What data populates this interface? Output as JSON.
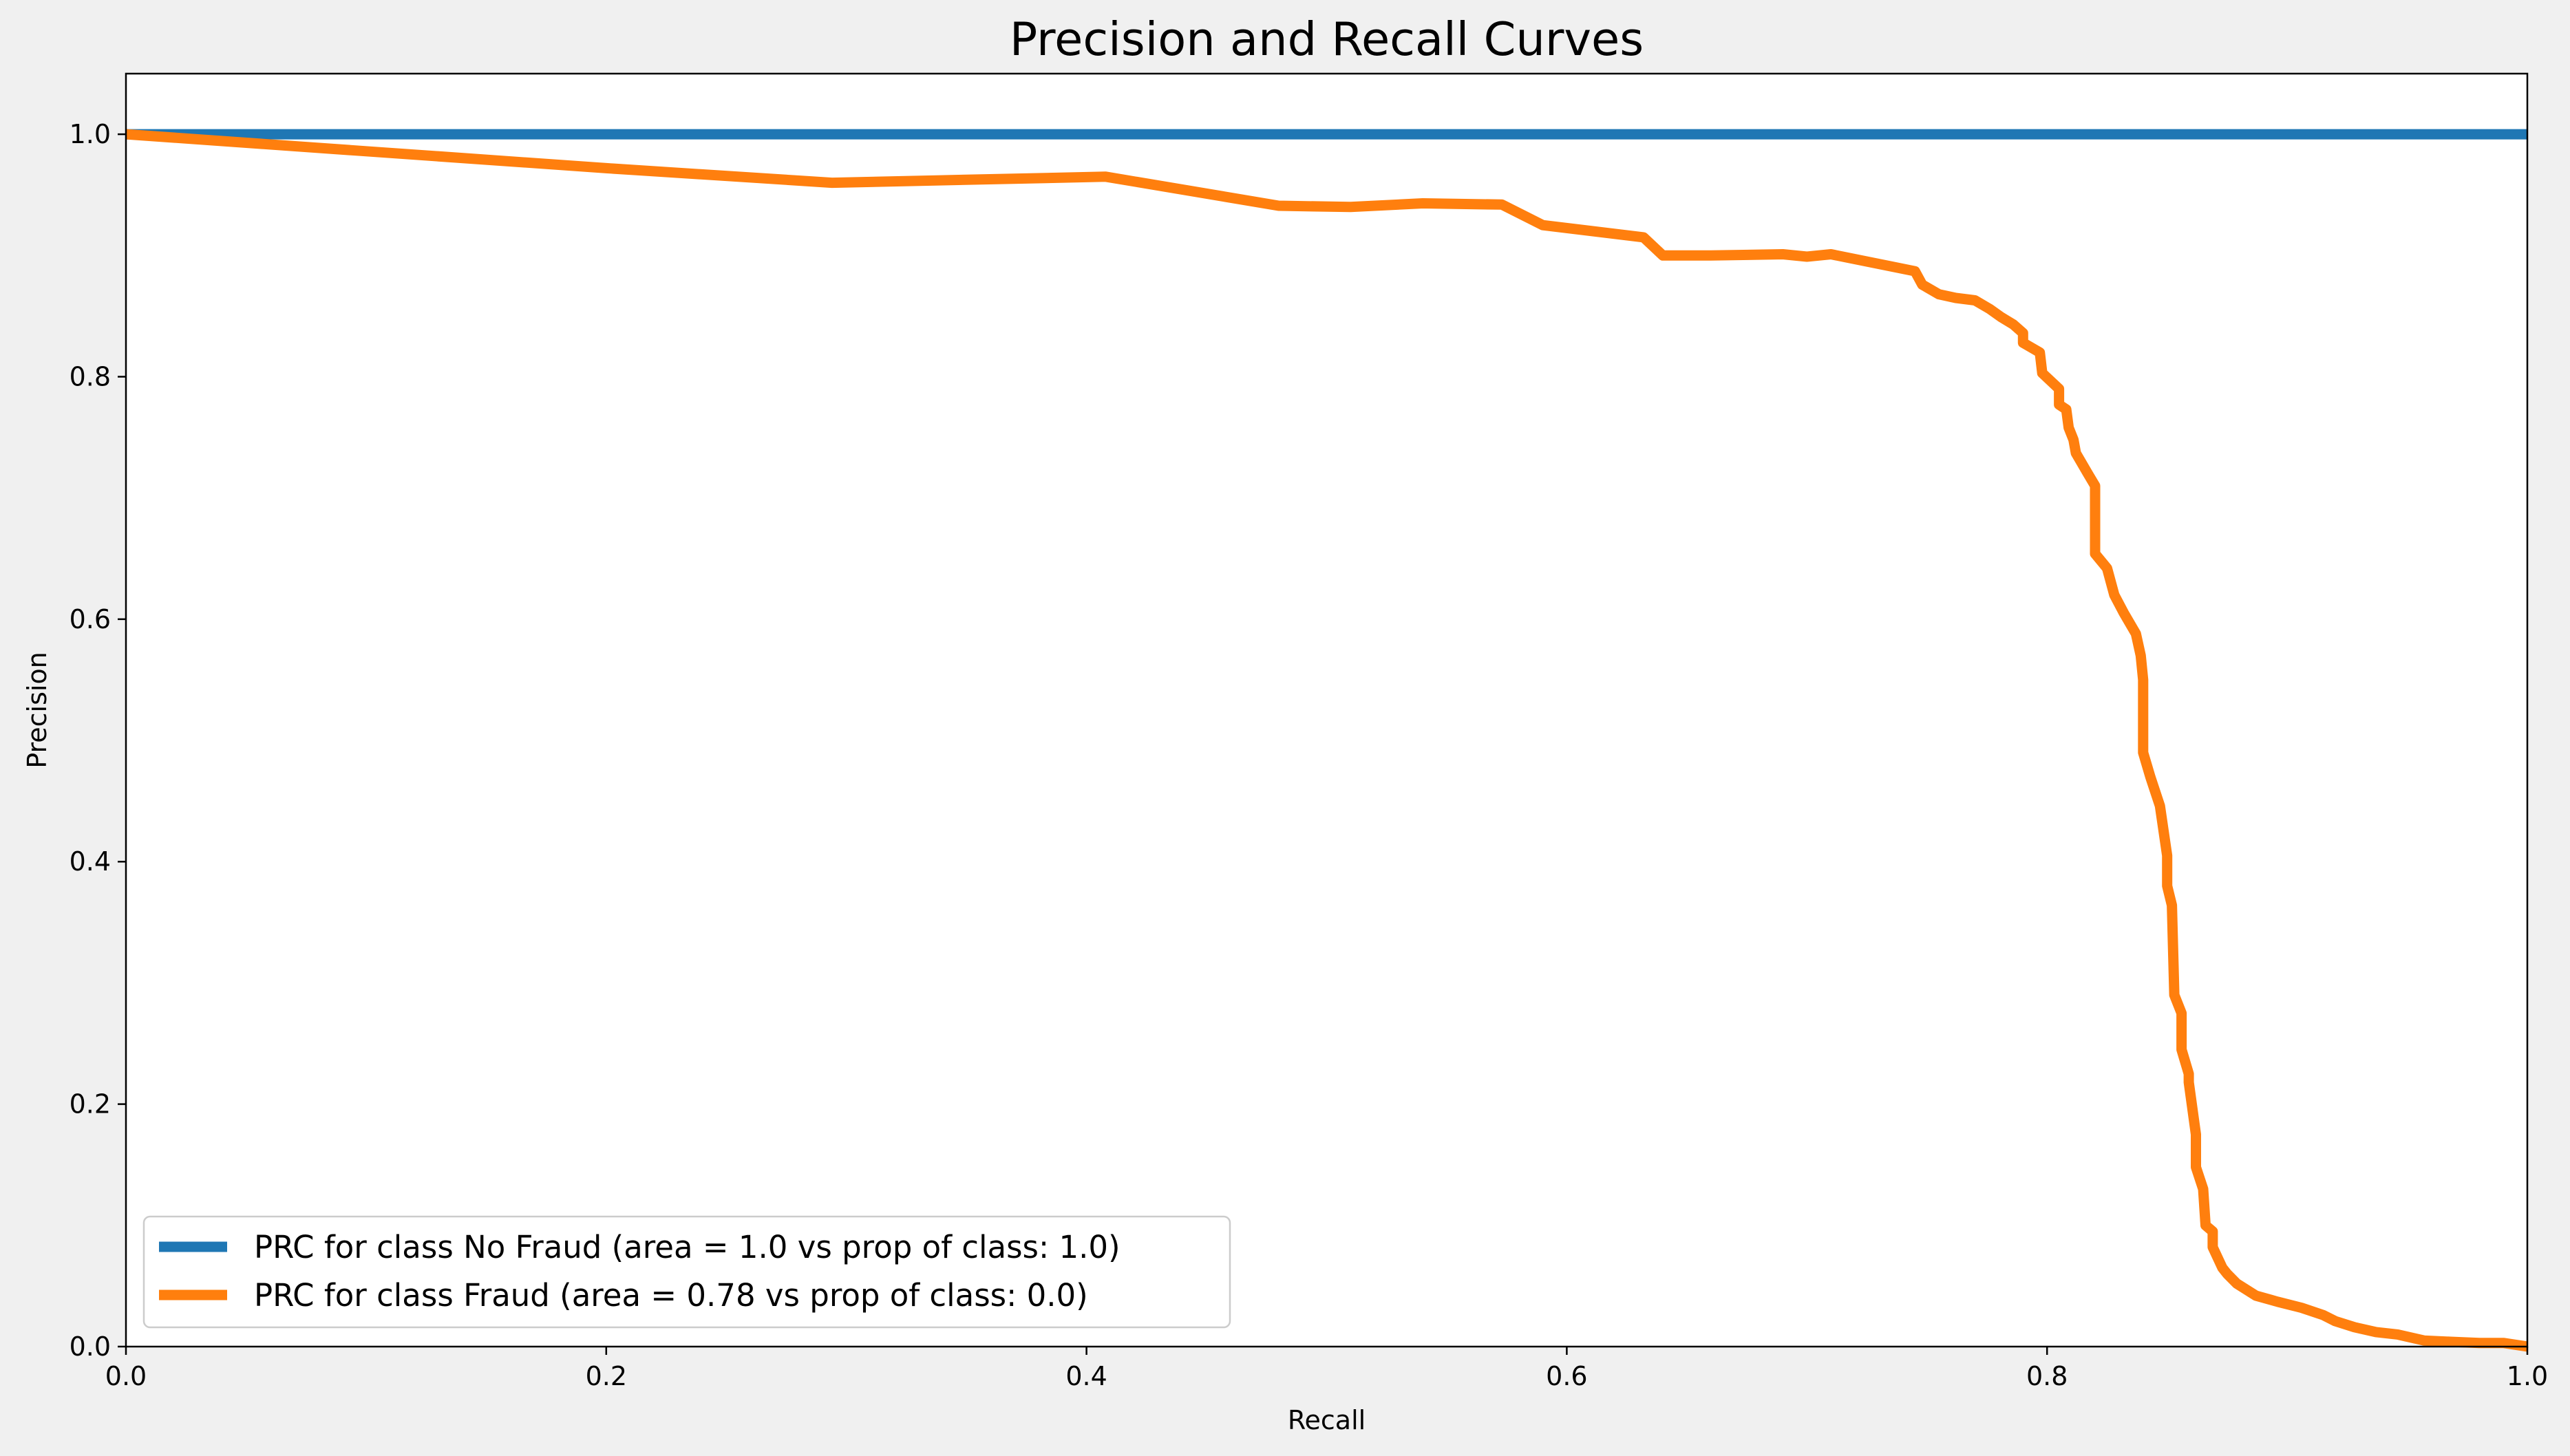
{
  "chart_data": {
    "type": "line",
    "title": "Precision and Recall Curves",
    "xlabel": "Recall",
    "ylabel": "Precision",
    "xlim": [
      0.0,
      1.0
    ],
    "ylim": [
      0.0,
      1.05
    ],
    "xticks": [
      0.0,
      0.2,
      0.4,
      0.6,
      0.8,
      1.0
    ],
    "xtick_labels": [
      "0.0",
      "0.2",
      "0.4",
      "0.6",
      "0.8",
      "1.0"
    ],
    "yticks": [
      0.0,
      0.2,
      0.4,
      0.6,
      0.8,
      1.0
    ],
    "ytick_labels": [
      "0.0",
      "0.2",
      "0.4",
      "0.6",
      "0.8",
      "1.0"
    ],
    "grid": false,
    "legend_position": "lower-left",
    "series": [
      {
        "name": "PRC for class No Fraud (area = 1.0 vs prop of class: 1.0)",
        "color": "#1f77b4",
        "x": [
          0.0,
          1.0
        ],
        "y": [
          1.0,
          1.0
        ]
      },
      {
        "name": "PRC for class Fraud (area = 0.78 vs prop of class: 0.0)",
        "color": "#ff7f0e",
        "x": [
          0.0,
          0.1,
          0.2,
          0.294,
          0.408,
          0.48,
          0.51,
          0.54,
          0.573,
          0.59,
          0.632,
          0.64,
          0.66,
          0.69,
          0.7,
          0.71,
          0.745,
          0.748,
          0.755,
          0.762,
          0.77,
          0.776,
          0.781,
          0.786,
          0.79,
          0.79,
          0.797,
          0.798,
          0.805,
          0.805,
          0.808,
          0.809,
          0.811,
          0.812,
          0.817,
          0.82,
          0.82,
          0.825,
          0.828,
          0.832,
          0.837,
          0.839,
          0.84,
          0.84,
          0.843,
          0.847,
          0.85,
          0.85,
          0.852,
          0.853,
          0.856,
          0.856,
          0.859,
          0.859,
          0.862,
          0.862,
          0.865,
          0.866,
          0.869,
          0.869,
          0.873,
          0.875,
          0.879,
          0.887,
          0.896,
          0.906,
          0.915,
          0.92,
          0.928,
          0.937,
          0.946,
          0.957,
          0.968,
          0.98,
          0.99,
          1.0
        ],
        "y": [
          1.0,
          0.986,
          0.972,
          0.96,
          0.965,
          0.941,
          0.94,
          0.943,
          0.942,
          0.925,
          0.915,
          0.9,
          0.9,
          0.901,
          0.899,
          0.901,
          0.887,
          0.876,
          0.868,
          0.865,
          0.863,
          0.856,
          0.849,
          0.843,
          0.836,
          0.828,
          0.82,
          0.803,
          0.79,
          0.777,
          0.773,
          0.758,
          0.748,
          0.737,
          0.72,
          0.71,
          0.654,
          0.642,
          0.62,
          0.605,
          0.588,
          0.57,
          0.55,
          0.49,
          0.47,
          0.446,
          0.405,
          0.38,
          0.364,
          0.29,
          0.275,
          0.245,
          0.225,
          0.218,
          0.175,
          0.148,
          0.13,
          0.1,
          0.095,
          0.082,
          0.065,
          0.06,
          0.052,
          0.042,
          0.037,
          0.032,
          0.026,
          0.021,
          0.016,
          0.012,
          0.01,
          0.005,
          0.004,
          0.003,
          0.003,
          0.0
        ]
      }
    ]
  }
}
